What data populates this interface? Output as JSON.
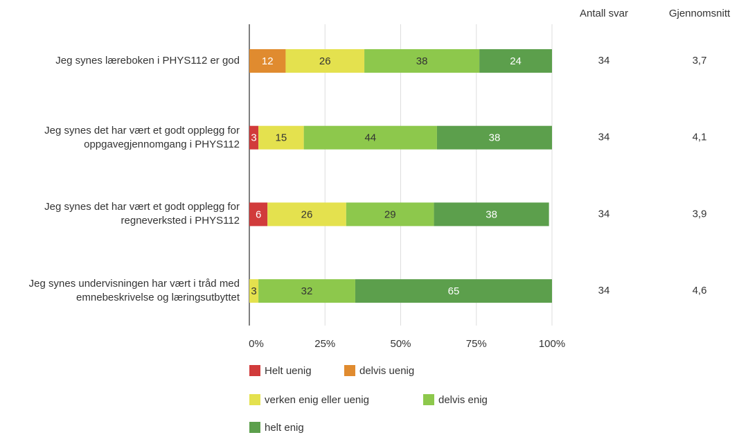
{
  "chart_data": {
    "type": "stacked-bar-horizontal",
    "categories": [
      "Jeg synes læreboken i PHYS112 er god",
      "Jeg synes det har vært et godt opplegg for oppgavegjennomgang i PHYS112",
      "Jeg synes det har vært et godt opplegg for regneverksted i PHYS112",
      "Jeg synes undervisningen har vært i tråd med emnebeskrivelse og læringsutbyttet"
    ],
    "series": [
      {
        "name": "Helt uenig",
        "color": "#d13b3b",
        "label_color": "#ffffff",
        "values": [
          0,
          3,
          6,
          0
        ]
      },
      {
        "name": "delvis uenig",
        "color": "#e08b2f",
        "label_color": "#ffffff",
        "values": [
          12,
          0,
          0,
          0
        ]
      },
      {
        "name": "verken enig eller uenig",
        "color": "#e4e14e",
        "label_color": "#333333",
        "values": [
          26,
          15,
          26,
          3
        ]
      },
      {
        "name": "delvis enig",
        "color": "#8dc84c",
        "label_color": "#333333",
        "values": [
          38,
          44,
          29,
          32
        ]
      },
      {
        "name": "helt enig",
        "color": "#5c9f4c",
        "label_color": "#ffffff",
        "values": [
          24,
          38,
          38,
          65
        ]
      }
    ],
    "xlim": [
      0,
      100
    ],
    "xticks": [
      {
        "value": 0,
        "label": "0%"
      },
      {
        "value": 25,
        "label": "25%"
      },
      {
        "value": 50,
        "label": "50%"
      },
      {
        "value": 75,
        "label": "75%"
      },
      {
        "value": 100,
        "label": "100%"
      }
    ],
    "grid": true,
    "legend": "bottom",
    "columns": [
      {
        "name": "Antall svar",
        "values": [
          34,
          34,
          34,
          34
        ]
      },
      {
        "name": "Gjennomsnitt",
        "values": [
          3.7,
          4.1,
          3.9,
          4.6
        ],
        "value_labels": [
          "3,7",
          "4,1",
          "3,9",
          "4,6"
        ]
      }
    ]
  }
}
